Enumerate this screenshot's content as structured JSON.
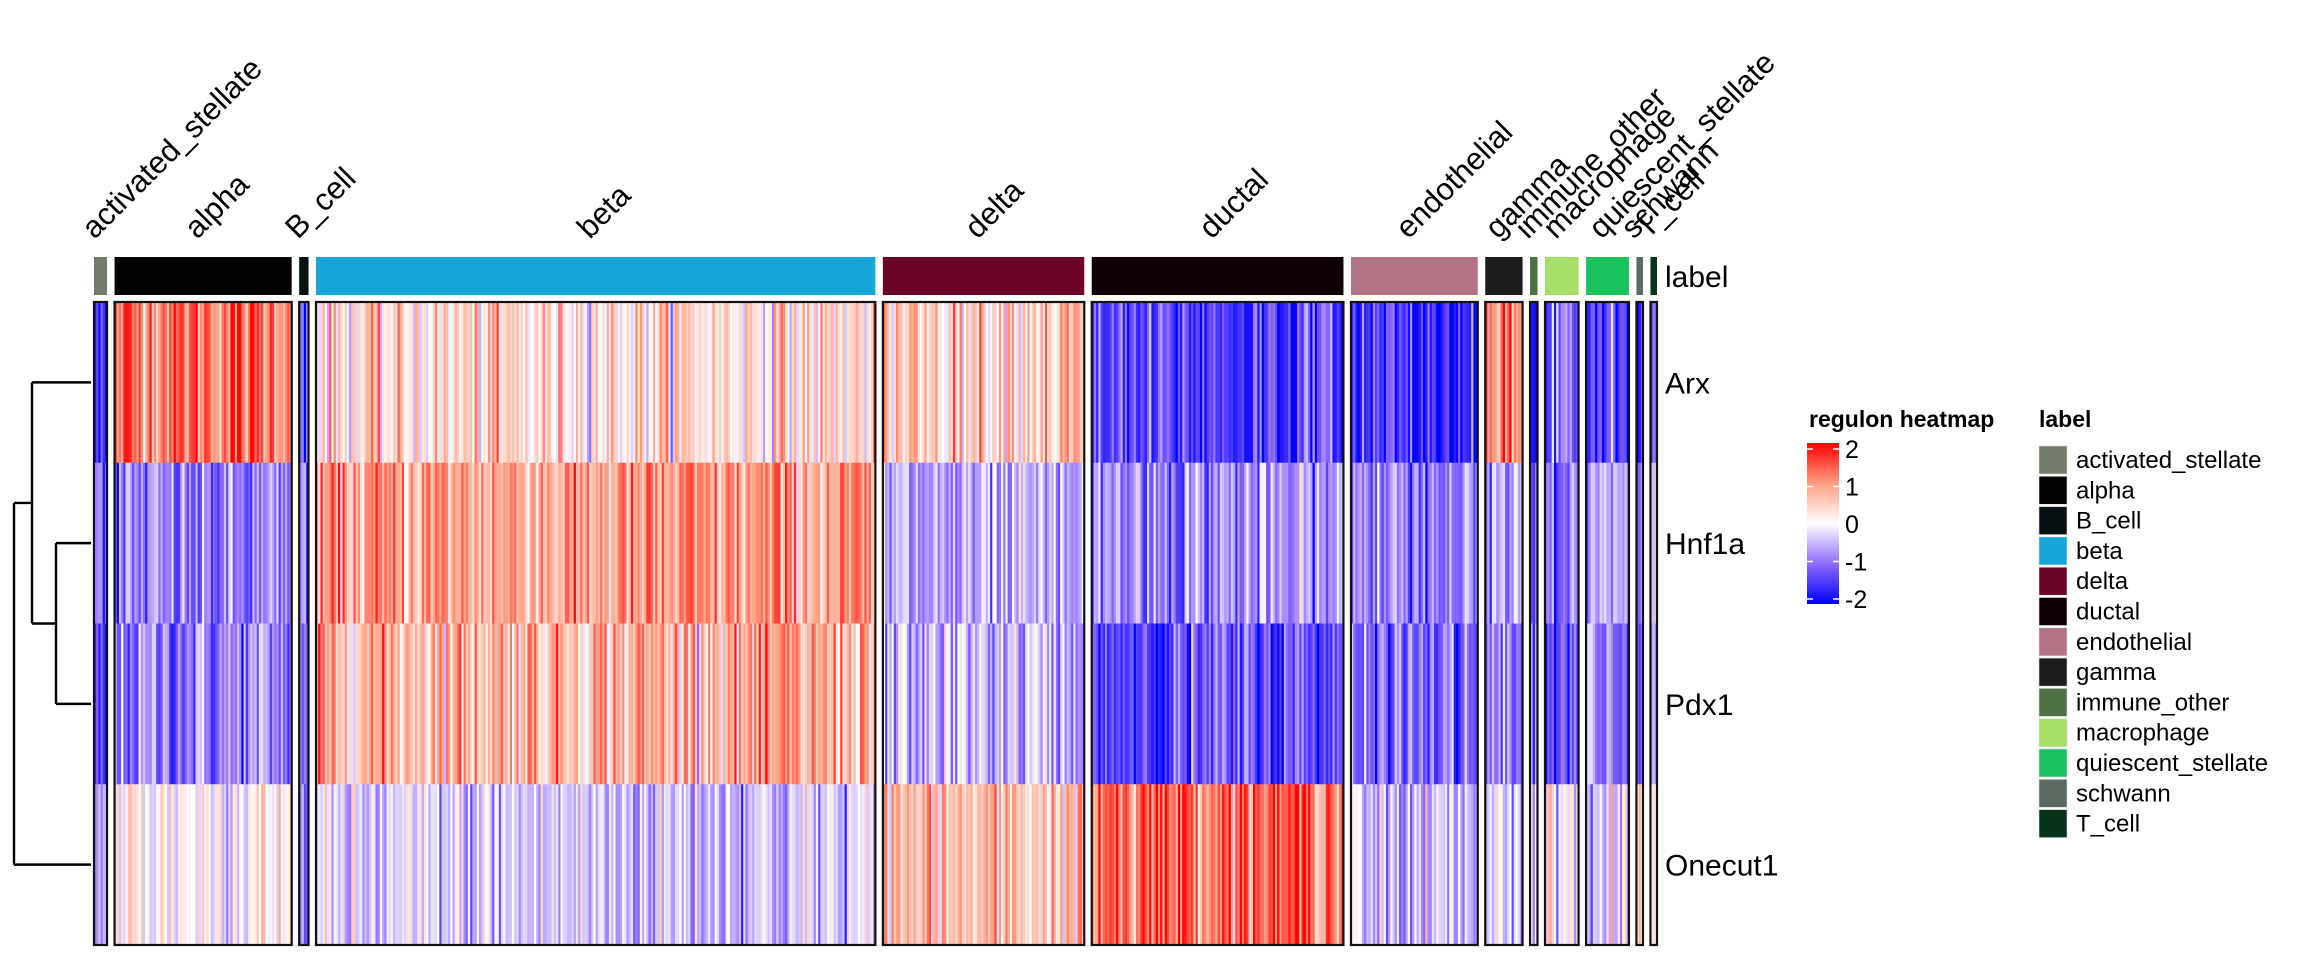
{
  "chart_data": {
    "type": "heatmap",
    "title": "",
    "row_labels": [
      "Arx",
      "Hnf1a",
      "Pdx1",
      "Onecut1"
    ],
    "row_dendrogram": {
      "merges": [
        {
          "left": "Hnf1a",
          "right": "Pdx1",
          "height_rank": 1
        },
        {
          "left": "Arx",
          "right": "Hnf1a+Pdx1",
          "height_rank": 2
        },
        {
          "left": "Arx+Hnf1a+Pdx1",
          "right": "Onecut1",
          "height_rank": 3
        }
      ]
    },
    "column_annotation": {
      "name": "label",
      "clusters": [
        {
          "name": "activated_stellate",
          "color": "#737B69",
          "rel_cells": 0.7,
          "means": [
            -1.7,
            -0.9,
            -1.2,
            -0.8
          ]
        },
        {
          "name": "alpha",
          "color": "#030303",
          "rel_cells": 9.5,
          "means": [
            1.3,
            -1.0,
            -0.9,
            0.1
          ]
        },
        {
          "name": "B_cell",
          "color": "#060F11",
          "rel_cells": 0.5,
          "means": [
            -1.1,
            -0.9,
            -1.1,
            -0.7
          ]
        },
        {
          "name": "beta",
          "color": "#16A7D8",
          "rel_cells": 30.0,
          "means": [
            0.35,
            0.9,
            0.8,
            -0.4
          ]
        },
        {
          "name": "delta",
          "color": "#6A0424",
          "rel_cells": 10.8,
          "means": [
            0.6,
            -0.7,
            -0.5,
            0.6
          ]
        },
        {
          "name": "ductal",
          "color": "#0F0003",
          "rel_cells": 13.5,
          "means": [
            -1.4,
            -0.8,
            -1.3,
            1.4
          ]
        },
        {
          "name": "endothelial",
          "color": "#B27484",
          "rel_cells": 6.8,
          "means": [
            -1.6,
            -0.9,
            -1.1,
            -0.5
          ]
        },
        {
          "name": "gamma",
          "color": "#1B1B1B",
          "rel_cells": 2.0,
          "means": [
            0.9,
            -0.6,
            -0.9,
            -0.2
          ]
        },
        {
          "name": "immune_other",
          "color": "#4E7045",
          "rel_cells": 0.4,
          "means": [
            -1.7,
            -1.0,
            -1.2,
            -0.6
          ]
        },
        {
          "name": "macrophage",
          "color": "#A7DD69",
          "rel_cells": 1.8,
          "means": [
            -1.3,
            -0.9,
            -1.1,
            -0.1
          ]
        },
        {
          "name": "quiescent_stellate",
          "color": "#1CC25E",
          "rel_cells": 2.3,
          "means": [
            -1.5,
            -0.7,
            -1.0,
            -0.4
          ]
        },
        {
          "name": "schwann",
          "color": "#5A6B62",
          "rel_cells": 0.35,
          "means": [
            -1.7,
            -1.0,
            -1.3,
            0.4
          ]
        },
        {
          "name": "T_cell",
          "color": "#063219",
          "rel_cells": 0.35,
          "means": [
            -1.2,
            -0.6,
            -0.7,
            -0.3
          ]
        }
      ]
    },
    "color_scale": {
      "title": "regulon heatmap",
      "min": -2,
      "max": 2,
      "colors": {
        "low": "#0000FF",
        "mid": "#FFFFFF",
        "high": "#FF0000"
      },
      "ticks": [
        2,
        1,
        0,
        -1,
        -2
      ]
    },
    "annotation_legend": {
      "title": "label"
    }
  }
}
